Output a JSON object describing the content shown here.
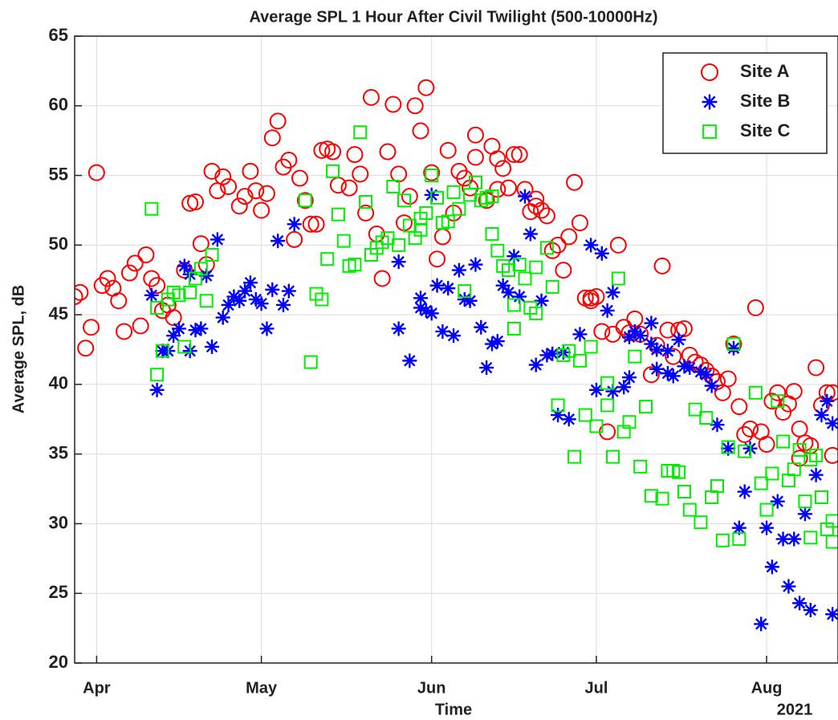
{
  "chart_data": {
    "type": "scatter",
    "title": "Average SPL 1 Hour After Civil Twilight (500-10000Hz)",
    "xlabel": "Time",
    "x_year_label": "2021",
    "ylabel": "Average SPL, dB",
    "xlim": [
      87,
      226
    ],
    "xticks": [
      {
        "value": 91,
        "label": "Apr"
      },
      {
        "value": 121,
        "label": "May"
      },
      {
        "value": 152,
        "label": "Jun"
      },
      {
        "value": 182,
        "label": "Jul"
      },
      {
        "value": 213,
        "label": "Aug"
      }
    ],
    "ylim": [
      20,
      65
    ],
    "yticks": [
      20,
      25,
      30,
      35,
      40,
      45,
      50,
      55,
      60,
      65
    ],
    "grid": true,
    "legend": "upper-right",
    "series": [
      {
        "name": "Site A",
        "color": "#ff0000",
        "marker": "circle",
        "x": [
          87,
          88,
          89,
          90,
          91,
          92,
          93,
          94,
          95,
          96,
          97,
          98,
          99,
          100,
          101,
          102,
          103,
          104,
          105,
          107,
          108,
          109,
          110,
          111,
          112,
          113,
          114,
          115,
          117,
          118,
          119,
          120,
          121,
          122,
          123,
          124,
          125,
          126,
          127,
          128,
          129,
          130,
          131,
          132,
          133,
          134,
          135,
          137,
          138,
          139,
          140,
          141,
          142,
          143,
          144,
          145,
          146,
          147,
          148,
          149,
          150,
          151,
          152,
          153,
          154,
          155,
          156,
          157,
          158,
          159,
          160,
          160,
          162,
          163,
          164,
          164,
          165,
          166,
          167,
          168,
          169,
          170,
          171,
          171,
          172,
          173,
          174,
          175,
          176,
          177,
          178,
          179,
          180,
          181,
          181,
          182,
          183,
          184,
          185,
          186,
          187,
          188,
          189,
          190,
          192,
          193,
          194,
          195,
          196,
          197,
          198,
          199,
          200,
          201,
          202,
          203,
          204,
          205,
          206,
          207,
          208,
          209,
          210,
          211,
          212,
          213,
          214,
          215,
          216,
          217,
          218,
          219,
          219,
          220,
          221,
          222,
          223,
          224,
          225,
          225
        ],
        "values": [
          46.3,
          46.6,
          42.6,
          44.1,
          55.2,
          47.1,
          47.6,
          46.9,
          46.0,
          43.8,
          48.0,
          48.7,
          44.2,
          49.3,
          47.6,
          47.1,
          45.3,
          45.7,
          44.8,
          48.2,
          53.0,
          53.1,
          50.1,
          48.6,
          55.3,
          53.9,
          54.9,
          54.2,
          52.8,
          53.5,
          55.3,
          53.9,
          52.5,
          53.7,
          57.7,
          58.9,
          55.6,
          56.1,
          50.4,
          54.8,
          53.2,
          51.5,
          51.5,
          56.8,
          56.9,
          56.7,
          54.3,
          54.1,
          56.5,
          55.1,
          52.3,
          60.6,
          50.8,
          47.6,
          56.7,
          60.1,
          55.1,
          51.6,
          53.5,
          60.0,
          58.2,
          61.3,
          55.2,
          49.0,
          50.6,
          56.8,
          52.3,
          55.3,
          54.8,
          54.1,
          56.3,
          57.9,
          53.2,
          57.1,
          54.0,
          56.2,
          55.5,
          54.1,
          56.5,
          56.5,
          54.0,
          52.4,
          53.3,
          52.8,
          52.5,
          52.1,
          49.6,
          50.0,
          48.2,
          50.6,
          54.5,
          51.6,
          46.2,
          46.0,
          46.2,
          46.3,
          43.8,
          36.6,
          43.6,
          50.0,
          44.1,
          43.7,
          44.7,
          43.6,
          40.7,
          42.8,
          48.5,
          43.9,
          42.0,
          43.9,
          44.0,
          42.1,
          41.6,
          41.4,
          41.0,
          40.6,
          40.2,
          39.4,
          40.4,
          42.9,
          38.4,
          36.4,
          36.8,
          45.5,
          36.6,
          35.7,
          38.8,
          39.4,
          38.0,
          38.6,
          39.5,
          36.8,
          34.7,
          35.8,
          35.6,
          41.2,
          38.5,
          39.4,
          39.4,
          34.9
        ]
      },
      {
        "name": "Site B",
        "color": "#0000ff",
        "marker": "asterisk",
        "x": [
          101,
          102,
          103,
          104,
          105,
          106,
          107,
          108,
          108,
          109,
          110,
          111,
          112,
          113,
          114,
          115,
          116,
          117,
          118,
          119,
          120,
          121,
          122,
          123,
          124,
          125,
          126,
          127,
          146,
          146,
          148,
          150,
          150,
          151,
          152,
          152,
          153,
          154,
          155,
          156,
          157,
          158,
          159,
          160,
          161,
          162,
          163,
          164,
          165,
          166,
          167,
          168,
          169,
          170,
          171,
          172,
          173,
          174,
          175,
          176,
          177,
          179,
          181,
          182,
          183,
          184,
          185,
          185,
          187,
          188,
          188,
          189,
          190,
          192,
          192,
          193,
          193,
          195,
          195,
          196,
          197,
          198,
          199,
          201,
          202,
          203,
          204,
          206,
          207,
          208,
          209,
          210,
          212,
          213,
          214,
          215,
          216,
          217,
          218,
          219,
          220,
          221,
          222,
          223,
          224,
          225,
          225
        ],
        "values": [
          46.4,
          39.6,
          42.4,
          42.4,
          43.5,
          44.0,
          48.5,
          47.9,
          42.4,
          43.9,
          44.0,
          47.8,
          42.7,
          50.4,
          44.8,
          45.7,
          46.3,
          46.0,
          46.7,
          47.3,
          46.1,
          45.8,
          44.0,
          46.8,
          50.3,
          45.7,
          46.7,
          51.5,
          44.0,
          48.8,
          41.7,
          45.5,
          46.2,
          45.3,
          45.1,
          53.6,
          47.1,
          43.8,
          46.9,
          43.5,
          48.2,
          46.1,
          46.0,
          48.6,
          44.1,
          41.2,
          42.9,
          43.1,
          47.1,
          46.6,
          49.2,
          46.3,
          53.5,
          50.8,
          41.4,
          46.0,
          42.1,
          42.2,
          37.8,
          42.3,
          37.5,
          43.6,
          50.0,
          39.6,
          49.4,
          45.3,
          46.6,
          39.5,
          39.8,
          40.5,
          43.4,
          43.8,
          43.5,
          42.9,
          44.4,
          41.1,
          42.5,
          40.8,
          42.4,
          40.6,
          43.2,
          41.3,
          41.2,
          40.9,
          40.7,
          39.9,
          37.1,
          35.4,
          42.6,
          29.7,
          32.3,
          35.4,
          22.8,
          29.7,
          26.9,
          31.6,
          28.9,
          25.5,
          28.9,
          24.3,
          30.7,
          23.8,
          33.5,
          37.8,
          38.8,
          37.2,
          23.5
        ]
      },
      {
        "name": "Site C",
        "color": "#00ee00",
        "marker": "square",
        "x": [
          101,
          102,
          102,
          103,
          104,
          105,
          106,
          107,
          108,
          109,
          110,
          111,
          112,
          129,
          130,
          131,
          132,
          133,
          134,
          135,
          136,
          137,
          138,
          139,
          140,
          141,
          142,
          143,
          144,
          145,
          146,
          147,
          148,
          149,
          150,
          150,
          151,
          152,
          153,
          154,
          155,
          156,
          157,
          158,
          159,
          160,
          161,
          162,
          163,
          163,
          164,
          165,
          166,
          167,
          167,
          168,
          169,
          170,
          171,
          171,
          173,
          174,
          175,
          176,
          177,
          178,
          179,
          180,
          181,
          182,
          184,
          184,
          185,
          186,
          187,
          188,
          189,
          190,
          191,
          192,
          194,
          195,
          196,
          197,
          198,
          199,
          200,
          201,
          202,
          203,
          204,
          205,
          206,
          207,
          208,
          209,
          211,
          212,
          213,
          214,
          215,
          216,
          217,
          218,
          219,
          220,
          221,
          221,
          222,
          223,
          224,
          225,
          225
        ],
        "values": [
          52.6,
          40.7,
          45.5,
          42.4,
          46.1,
          46.6,
          46.4,
          42.7,
          46.6,
          47.6,
          48.3,
          46.0,
          49.3,
          53.2,
          41.6,
          46.5,
          46.1,
          49.0,
          55.3,
          52.2,
          50.3,
          48.5,
          48.6,
          58.1,
          53.1,
          49.3,
          49.8,
          50.2,
          50.5,
          54.2,
          50.0,
          53.2,
          51.4,
          50.5,
          51.1,
          51.9,
          52.3,
          55.0,
          53.4,
          51.6,
          51.7,
          53.8,
          52.6,
          46.7,
          53.6,
          54.5,
          53.2,
          53.4,
          53.5,
          50.8,
          49.6,
          48.5,
          48.2,
          45.7,
          44.0,
          48.6,
          47.6,
          45.5,
          45.1,
          48.4,
          49.8,
          47.0,
          38.5,
          42.1,
          42.4,
          34.8,
          41.7,
          37.8,
          42.7,
          37.0,
          38.5,
          40.1,
          34.8,
          47.6,
          36.6,
          37.3,
          42.0,
          34.1,
          38.4,
          32.0,
          31.8,
          33.8,
          33.8,
          33.7,
          32.3,
          31.0,
          38.2,
          30.1,
          37.6,
          31.9,
          32.7,
          28.8,
          35.5,
          42.9,
          28.9,
          35.2,
          39.4,
          32.9,
          31.0,
          33.6,
          38.8,
          35.9,
          33.1,
          33.9,
          35.3,
          31.6,
          34.6,
          29.0,
          34.9,
          31.9,
          29.6,
          30.2,
          28.7
        ]
      }
    ]
  }
}
